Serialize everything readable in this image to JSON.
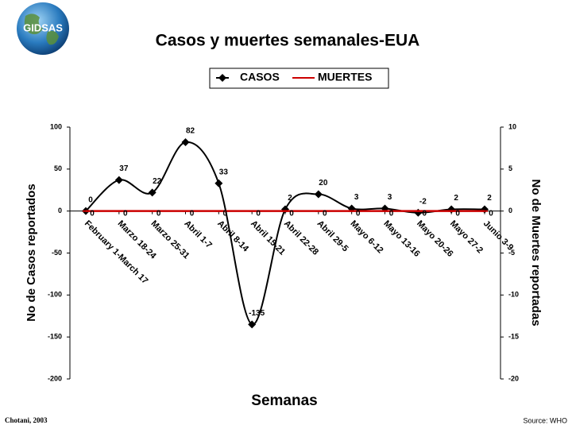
{
  "logo": "GIDSAS",
  "credit": "Chotani, 2003",
  "source": "Source: WHO",
  "chart_data": {
    "type": "line",
    "title": "Casos y muertes semanales-EUA",
    "x_label": "Semanas",
    "y_label": "No de Casos reportados",
    "y2_label": "No de Muertes reportadas",
    "categories": [
      "February 1-March 17",
      "Marzo 18-24",
      "Marzo 25-31",
      "Abril 1-7",
      "Abril 8-14",
      "Abril 15-21",
      "Abril 22-28",
      "Abril 29-5",
      "Mayo 6-12",
      "Mayo 13-16",
      "Mayo 20-26",
      "Mayo 27-2",
      "Junio 3-9"
    ],
    "series": [
      {
        "name": "CASOS",
        "color": "#000000",
        "values": [
          0,
          37,
          22,
          82,
          33,
          -135,
          2,
          20,
          3,
          3,
          -2,
          2,
          2
        ]
      },
      {
        "name": "MUERTES",
        "color": "#cc0000",
        "axis": "y2",
        "values": [
          0,
          0,
          0,
          0,
          0,
          0,
          0,
          0,
          0,
          0,
          0,
          0,
          0
        ]
      }
    ],
    "ylim": [
      -200,
      100
    ],
    "yticks": [
      -200,
      -150,
      -100,
      -50,
      0,
      50,
      100
    ],
    "y2lim": [
      -20,
      10
    ],
    "y2ticks": [
      -20,
      -15,
      -10,
      -5,
      0,
      5,
      10
    ],
    "legend": "top"
  }
}
